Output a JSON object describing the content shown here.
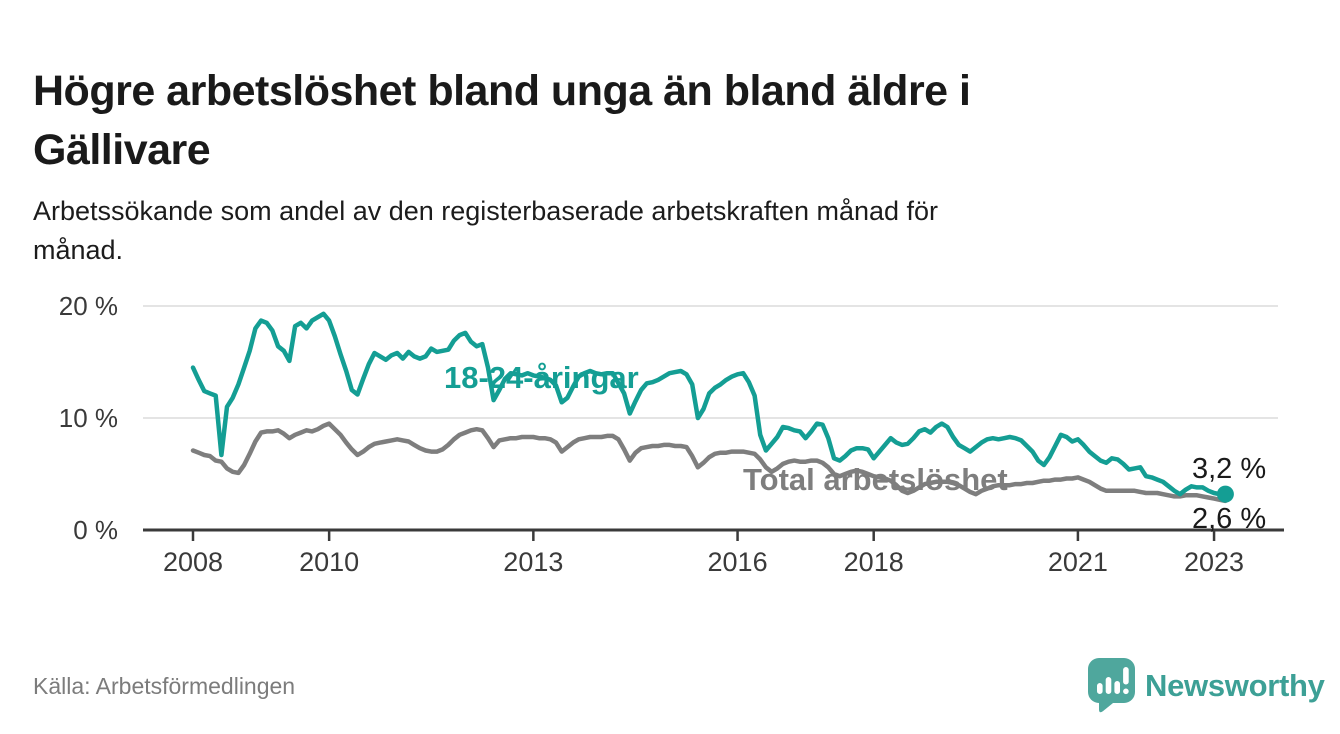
{
  "page": {
    "title_lines": [
      "Högre arbetslöshet bland unga än bland äldre i",
      "Gällivare"
    ],
    "subtitle_lines": [
      "Arbetssökande som andel av den registerbaserade arbetskraften månad för",
      "månad."
    ],
    "source": "Källa: Arbetsförmedlingen",
    "logo_text": "Newsworthy"
  },
  "colors": {
    "youth_line": "#149e94",
    "total_line": "#7e7e7e",
    "text_dark": "#1a1a1a",
    "axis": "#3a3a3a",
    "grid": "#dbdbdb",
    "logo_teal": "#4fa79d"
  },
  "chart_data": {
    "type": "line",
    "unit": "%",
    "frequency": "monthly",
    "x_start": "2008-01",
    "x_end": "2023-03",
    "ylim": [
      0,
      21.5
    ],
    "grid": "horizontal-only",
    "x_ticks": [
      2008,
      2010,
      2013,
      2016,
      2018,
      2021,
      2023
    ],
    "x_tick_labels": [
      "2008",
      "2010",
      "2013",
      "2016",
      "2018",
      "2021",
      "2023"
    ],
    "y_ticks": [
      {
        "value": 0,
        "label": "0 %"
      },
      {
        "value": 10,
        "label": "10 %"
      },
      {
        "value": 20,
        "label": "20 %"
      }
    ],
    "series": [
      {
        "id": "total",
        "name": "Total arbetslöshet",
        "color": "#7e7e7e",
        "end_value": 2.6,
        "end_dot": false,
        "inline_label": {
          "text": "Total arbetslöshet",
          "x": 743,
          "y": 490
        },
        "end_label": {
          "text": "2,6 %",
          "x": 1192,
          "y": 528
        },
        "values": [
          7.1,
          6.9,
          6.7,
          6.6,
          6.2,
          6.1,
          5.5,
          5.2,
          5.1,
          5.8,
          6.8,
          7.9,
          8.7,
          8.8,
          8.8,
          8.9,
          8.6,
          8.2,
          8.5,
          8.7,
          8.9,
          8.8,
          9.0,
          9.3,
          9.5,
          9.0,
          8.5,
          7.8,
          7.2,
          6.7,
          7.0,
          7.4,
          7.7,
          7.8,
          7.9,
          8.0,
          8.1,
          8.0,
          7.9,
          7.6,
          7.3,
          7.1,
          7.0,
          7.0,
          7.2,
          7.6,
          8.1,
          8.5,
          8.7,
          8.9,
          9.0,
          8.9,
          8.2,
          7.4,
          8.0,
          8.1,
          8.2,
          8.2,
          8.3,
          8.3,
          8.3,
          8.2,
          8.2,
          8.1,
          7.8,
          7.0,
          7.4,
          7.8,
          8.1,
          8.2,
          8.3,
          8.3,
          8.3,
          8.4,
          8.4,
          8.1,
          7.2,
          6.2,
          6.9,
          7.3,
          7.4,
          7.5,
          7.5,
          7.6,
          7.6,
          7.5,
          7.5,
          7.4,
          6.6,
          5.6,
          6.0,
          6.5,
          6.8,
          6.9,
          6.9,
          7.0,
          7.0,
          7.0,
          6.9,
          6.8,
          6.3,
          5.6,
          5.2,
          5.5,
          5.9,
          6.1,
          6.2,
          6.1,
          6.1,
          6.2,
          6.2,
          6.0,
          5.6,
          5.0,
          4.8,
          5.0,
          5.2,
          5.3,
          5.2,
          5.0,
          4.8,
          4.7,
          4.6,
          4.4,
          4.0,
          3.5,
          3.3,
          3.5,
          3.8,
          4.1,
          4.2,
          4.3,
          4.3,
          4.3,
          4.2,
          4.0,
          3.7,
          3.4,
          3.2,
          3.5,
          3.7,
          3.9,
          4.0,
          4.0,
          4.0,
          4.1,
          4.1,
          4.2,
          4.2,
          4.3,
          4.4,
          4.4,
          4.5,
          4.5,
          4.6,
          4.6,
          4.7,
          4.5,
          4.3,
          4.0,
          3.7,
          3.5,
          3.5,
          3.5,
          3.5,
          3.5,
          3.5,
          3.4,
          3.3,
          3.3,
          3.3,
          3.2,
          3.1,
          3.0,
          3.0,
          3.1,
          3.1,
          3.1,
          3.0,
          2.9,
          2.8,
          2.7,
          2.6
        ]
      },
      {
        "id": "youth",
        "name": "18-24-åringar",
        "color": "#149e94",
        "end_value": 3.2,
        "end_dot": true,
        "inline_label": {
          "text": "18-24-åringar",
          "x": 444,
          "y": 388
        },
        "end_label": {
          "text": "3,2 %",
          "x": 1192,
          "y": 478
        },
        "values": [
          14.5,
          13.4,
          12.4,
          12.2,
          12.0,
          6.7,
          11.0,
          11.8,
          13.0,
          14.5,
          16.0,
          18.0,
          18.7,
          18.5,
          17.8,
          16.4,
          16.0,
          15.1,
          18.2,
          18.5,
          18.0,
          18.7,
          19.0,
          19.3,
          18.7,
          17.3,
          15.7,
          14.2,
          12.5,
          12.1,
          13.5,
          14.8,
          15.8,
          15.5,
          15.2,
          15.6,
          15.8,
          15.3,
          15.9,
          15.5,
          15.3,
          15.5,
          16.2,
          15.9,
          16.0,
          16.1,
          16.9,
          17.4,
          17.6,
          16.8,
          16.4,
          16.6,
          14.5,
          11.6,
          12.5,
          13.5,
          14.0,
          13.9,
          13.8,
          14.0,
          13.8,
          13.7,
          13.6,
          13.4,
          12.9,
          11.4,
          11.8,
          12.8,
          13.7,
          14.0,
          14.2,
          14.0,
          13.9,
          14.0,
          14.0,
          13.1,
          12.2,
          10.4,
          11.5,
          12.5,
          13.1,
          13.2,
          13.4,
          13.7,
          14.0,
          14.1,
          14.2,
          13.9,
          13.0,
          10.0,
          10.8,
          12.2,
          12.7,
          13.0,
          13.4,
          13.7,
          13.9,
          14.0,
          13.2,
          12.0,
          8.5,
          7.1,
          7.7,
          8.3,
          9.2,
          9.1,
          8.9,
          8.8,
          8.2,
          8.8,
          9.5,
          9.4,
          8.2,
          6.4,
          6.2,
          6.6,
          7.1,
          7.3,
          7.3,
          7.2,
          6.4,
          7.0,
          7.6,
          8.2,
          7.8,
          7.6,
          7.7,
          8.2,
          8.8,
          9.0,
          8.7,
          9.2,
          9.5,
          9.2,
          8.3,
          7.6,
          7.3,
          7.0,
          7.4,
          7.8,
          8.1,
          8.2,
          8.1,
          8.2,
          8.3,
          8.2,
          8.0,
          7.5,
          7.0,
          6.2,
          5.8,
          6.5,
          7.5,
          8.5,
          8.3,
          7.9,
          8.1,
          7.6,
          7.0,
          6.6,
          6.2,
          6.0,
          6.4,
          6.3,
          5.9,
          5.4,
          5.5,
          5.6,
          4.8,
          4.7,
          4.5,
          4.3,
          3.9,
          3.5,
          3.2,
          3.6,
          3.9,
          3.8,
          3.8,
          3.5,
          3.3,
          3.2,
          3.2
        ]
      }
    ]
  }
}
